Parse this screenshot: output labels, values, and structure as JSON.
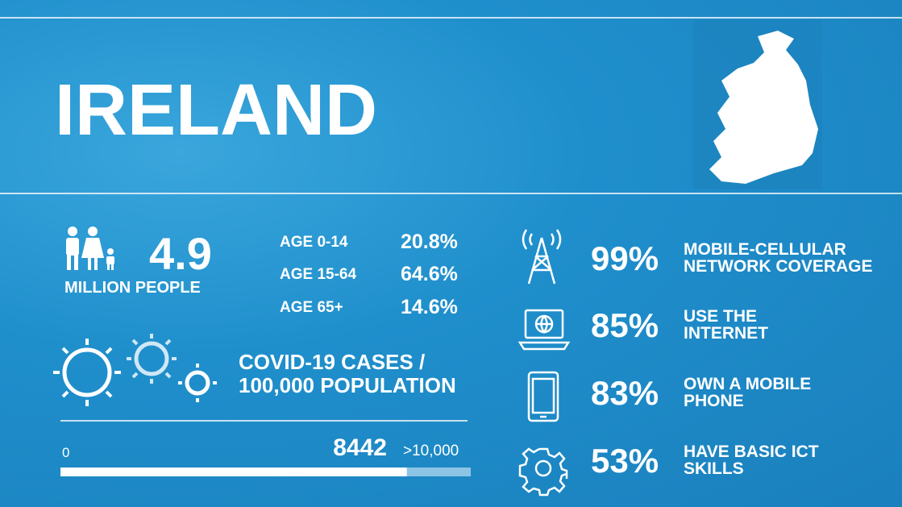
{
  "header": {
    "title": "IRELAND"
  },
  "population": {
    "value": "4.9",
    "label": "MILLION PEOPLE"
  },
  "ages": [
    {
      "label": "AGE 0-14",
      "value": "20.8%"
    },
    {
      "label": "AGE 15-64",
      "value": "64.6%"
    },
    {
      "label": "AGE 65+",
      "value": "14.6%"
    }
  ],
  "covid": {
    "label": "COVID-19 CASES / 100,000 POPULATION",
    "min": 0,
    "value": 8442,
    "max": {
      "value": 10000,
      "label": ">10,000"
    }
  },
  "stats": [
    {
      "value": "99%",
      "label": "MOBILE-CELLULAR NETWORK COVERAGE"
    },
    {
      "value": "85%",
      "label": "USE THE INTERNET"
    },
    {
      "value": "83%",
      "label": "OWN A MOBILE PHONE"
    },
    {
      "value": "53%",
      "label": "HAVE BASIC ICT SKILLS"
    }
  ]
}
